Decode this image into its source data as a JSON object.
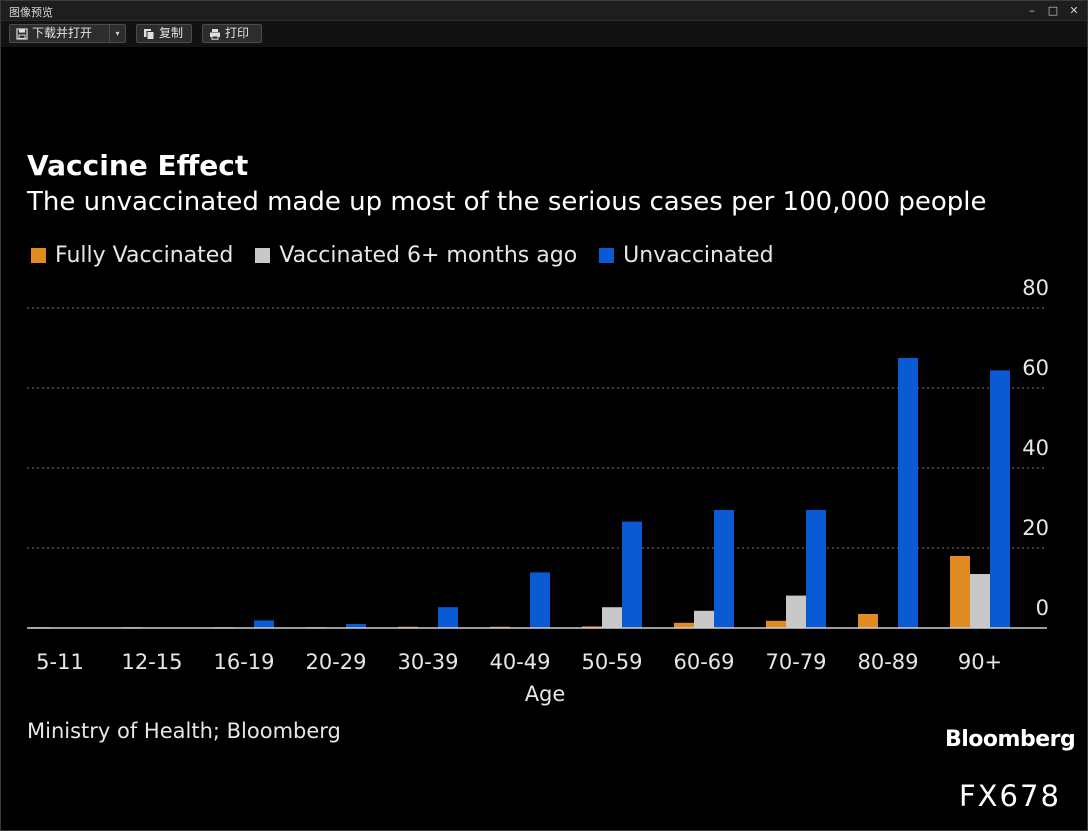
{
  "window": {
    "title": "图像预览",
    "toolbar": {
      "download_open_label": "下载并打开",
      "copy_label": "复制",
      "print_label": "打印"
    },
    "icons": {
      "download": "save-icon",
      "copy": "copy-icon",
      "print": "printer-icon",
      "minimize": "minimize-icon",
      "maximize": "maximize-icon",
      "close": "close-icon"
    }
  },
  "chart_data": {
    "type": "bar",
    "title": "Vaccine Effect",
    "subtitle": "The unvaccinated made up most of the serious cases per 100,000 people",
    "xlabel": "Age",
    "ylabel": "",
    "ylim": [
      0,
      80
    ],
    "yticks": [
      0,
      20,
      40,
      60,
      80
    ],
    "y_axis_side": "right",
    "grid": true,
    "legend_position": "top-left",
    "categories": [
      "5-11",
      "12-15",
      "16-19",
      "20-29",
      "30-39",
      "40-49",
      "50-59",
      "60-69",
      "70-79",
      "80-89",
      "90+"
    ],
    "series": [
      {
        "name": "Fully Vaccinated",
        "color": "#e38b23",
        "values": [
          0.2,
          0.2,
          0.2,
          0.2,
          0.3,
          0.3,
          0.4,
          1.3,
          1.8,
          3.5,
          18
        ]
      },
      {
        "name": "Vaccinated 6+ months ago",
        "color": "#c8c8c8",
        "values": [
          0,
          0,
          0,
          0,
          0,
          0,
          5.2,
          4.3,
          8.1,
          0,
          13.5
        ]
      },
      {
        "name": "Unvaccinated",
        "color": "#0a5ad4",
        "values": [
          0.1,
          0.1,
          1.9,
          1.0,
          5.2,
          13.9,
          26.6,
          29.5,
          29.5,
          67.5,
          64.4
        ]
      }
    ],
    "source": "Ministry of Health; Bloomberg"
  },
  "branding": {
    "logo": "Bloomberg",
    "code": "FX678"
  }
}
